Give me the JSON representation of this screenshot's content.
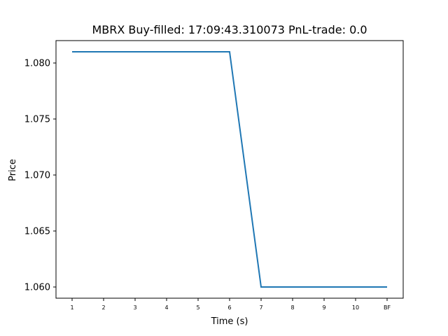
{
  "chart_data": {
    "type": "line",
    "title": "MBRX  Buy-filled:  17:09:43.310073  PnL-trade:  0.0",
    "xlabel": "Time (s)",
    "ylabel": "Price",
    "categories": [
      "1",
      "2",
      "3",
      "4",
      "5",
      "6",
      "7",
      "8",
      "9",
      "10",
      "BF"
    ],
    "series": [
      {
        "values": [
          1.081,
          1.081,
          1.081,
          1.081,
          1.081,
          1.081,
          1.06,
          1.06,
          1.06,
          1.06,
          1.06
        ],
        "color": "#1f77b4"
      }
    ],
    "ylim": [
      1.059,
      1.082
    ],
    "yticks": [
      "1.060",
      "1.065",
      "1.070",
      "1.075",
      "1.080"
    ],
    "grid": false,
    "legend": "none"
  }
}
